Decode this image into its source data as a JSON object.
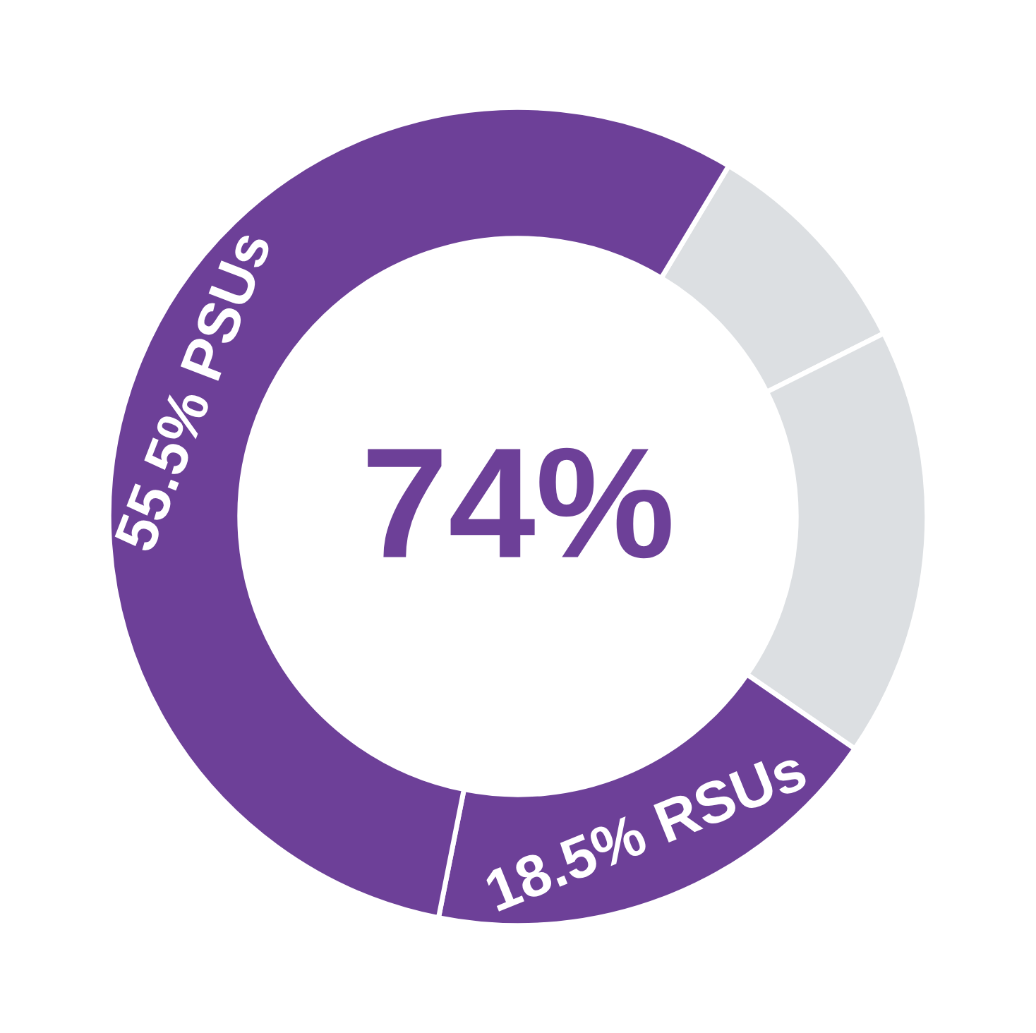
{
  "chart_data": {
    "type": "donut",
    "categories": [
      null,
      null,
      "18.5% RSUs",
      "55.5% PSUs"
    ],
    "values": [
      9,
      17,
      18.5,
      55.5
    ],
    "colors": [
      "#dcdfe2",
      "#dcdfe2",
      "#6d4098",
      "#6d4098"
    ],
    "annotations": [
      "74%"
    ]
  }
}
